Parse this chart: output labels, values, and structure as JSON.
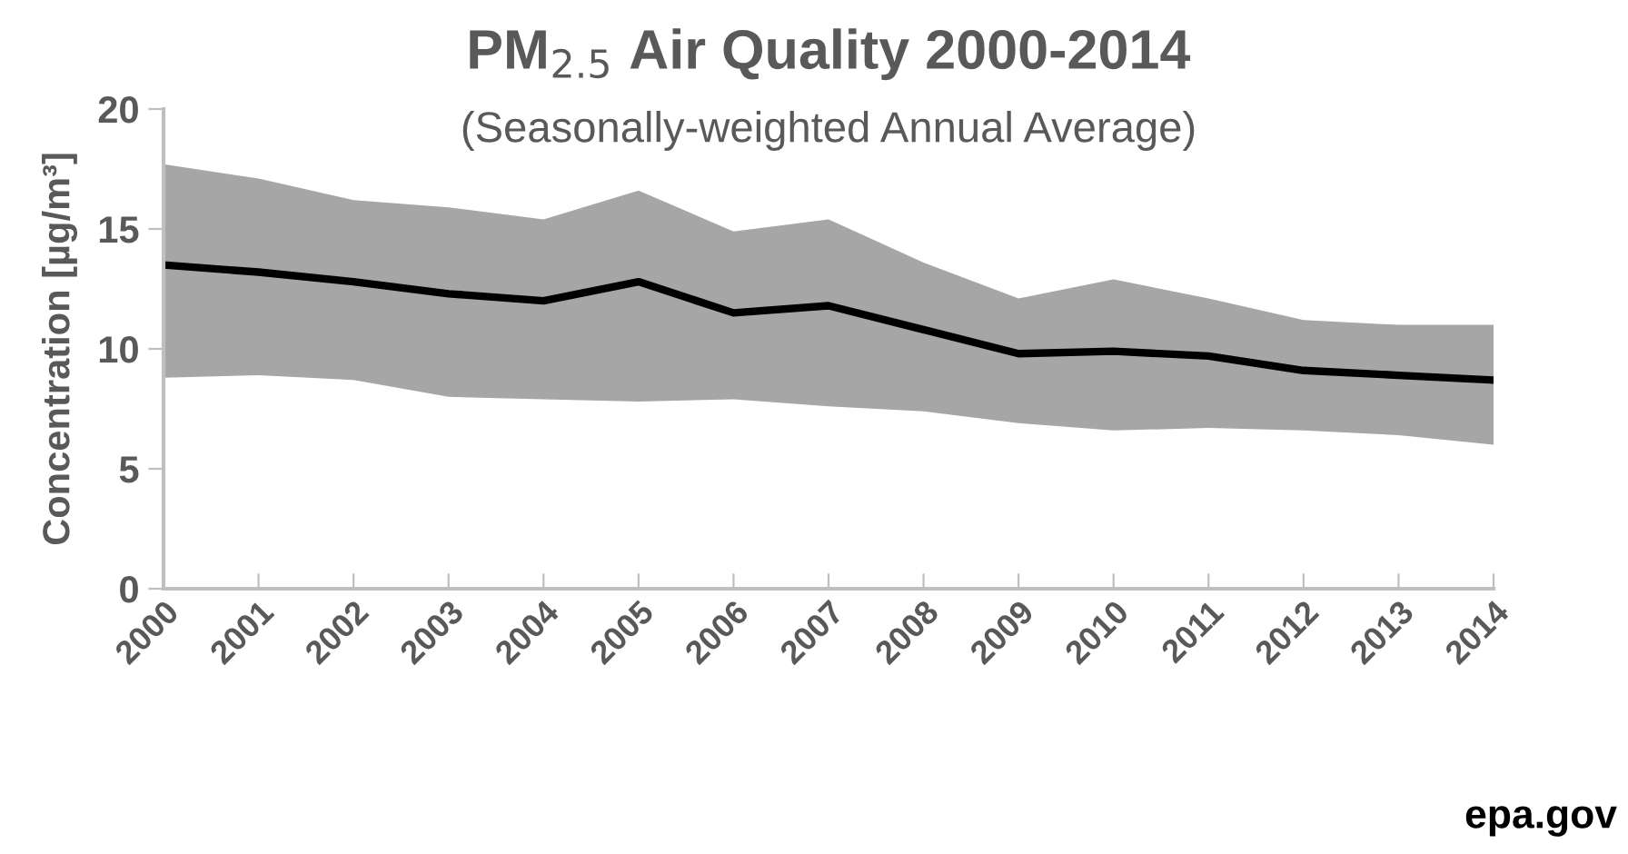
{
  "chart_data": {
    "type": "line",
    "title": "PM$_{2.5}$ Air Quality 2000-2014",
    "subtitle": "(Seasonally-weighted Annual Average)",
    "ylabel": "Concentration [µg/m³]",
    "categories": [
      "2000",
      "2001",
      "2002",
      "2003",
      "2004",
      "2005",
      "2006",
      "2007",
      "2008",
      "2009",
      "2010",
      "2011",
      "2012",
      "2013",
      "2014"
    ],
    "series": [
      {
        "color": "#000000",
        "values": [
          13.5,
          13.2,
          12.8,
          12.3,
          12.0,
          12.8,
          11.5,
          11.8,
          10.8,
          9.8,
          9.9,
          9.7,
          9.1,
          8.9,
          8.7
        ],
        "lower": [
          8.8,
          8.9,
          8.7,
          8.0,
          7.9,
          7.8,
          7.9,
          7.6,
          7.4,
          6.9,
          6.6,
          6.7,
          6.6,
          6.4,
          6.0
        ],
        "upper": [
          17.7,
          17.1,
          16.2,
          15.9,
          15.4,
          16.6,
          14.9,
          15.4,
          13.6,
          12.1,
          12.9,
          12.1,
          11.2,
          11.0,
          11.0
        ]
      }
    ],
    "ylim": [
      0,
      20
    ],
    "yticks": [
      0,
      5,
      10,
      15,
      20
    ],
    "grid": false,
    "legend": false,
    "marker": "none",
    "line_style": "solid",
    "annotations": [
      "epa.gov"
    ]
  }
}
